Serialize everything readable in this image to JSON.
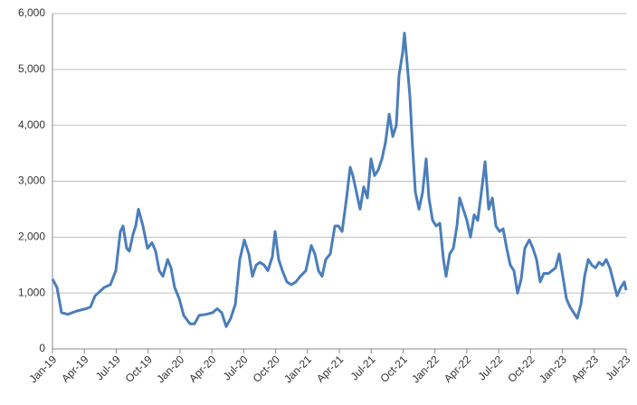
{
  "chart_data": {
    "type": "line",
    "x": [
      0,
      0.43,
      0.85,
      1.45,
      2.3,
      3.15,
      3.58,
      4.0,
      4.86,
      5.45,
      5.96,
      6.39,
      6.64,
      6.98,
      7.24,
      7.58,
      7.84,
      8.09,
      8.52,
      8.94,
      9.37,
      9.71,
      10.05,
      10.39,
      10.84,
      11.16,
      11.5,
      11.93,
      12.35,
      12.95,
      13.37,
      13.8,
      14.48,
      15.08,
      15.5,
      15.93,
      16.35,
      16.78,
      17.21,
      17.63,
      18.06,
      18.48,
      18.82,
      19.17,
      19.51,
      19.93,
      20.27,
      20.7,
      20.95,
      21.29,
      21.64,
      22.06,
      22.49,
      22.91,
      23.34,
      23.85,
      24.36,
      24.7,
      25.04,
      25.38,
      25.72,
      26.15,
      26.58,
      26.92,
      27.26,
      27.68,
      28.02,
      28.28,
      28.62,
      28.96,
      29.3,
      29.64,
      29.98,
      30.32,
      30.66,
      31.01,
      31.35,
      31.69,
      32.03,
      32.37,
      32.62,
      32.96,
      33.13,
      33.39,
      33.65,
      33.9,
      34.16,
      34.5,
      34.84,
      35.18,
      35.43,
      35.78,
      36.12,
      36.46,
      36.8,
      37.05,
      37.39,
      37.73,
      38.07,
      38.33,
      38.67,
      39.01,
      39.35,
      39.69,
      40.03,
      40.37,
      40.72,
      41.06,
      41.4,
      41.74,
      42.08,
      42.42,
      42.76,
      43.1,
      43.44,
      43.78,
      44.12,
      44.46,
      44.89,
      45.23,
      45.57,
      45.91,
      46.25,
      46.68,
      47.02,
      47.36,
      47.7,
      48.04,
      48.38,
      48.72,
      49.06,
      49.4,
      49.74,
      50.09,
      50.43,
      50.77,
      51.11,
      51.45,
      51.79,
      52.13,
      52.47,
      52.81,
      53.15,
      53.49,
      53.83,
      54.0
    ],
    "series": [
      {
        "color": "#4a7ebb",
        "values": [
          1250,
          1100,
          650,
          620,
          680,
          720,
          750,
          950,
          1100,
          1150,
          1400,
          2100,
          2200,
          1800,
          1750,
          2050,
          2200,
          2500,
          2200,
          1800,
          1900,
          1750,
          1400,
          1300,
          1600,
          1450,
          1100,
          900,
          600,
          450,
          450,
          600,
          620,
          650,
          720,
          650,
          400,
          550,
          800,
          1600,
          1950,
          1700,
          1300,
          1500,
          1550,
          1500,
          1400,
          1650,
          2100,
          1600,
          1400,
          1200,
          1150,
          1200,
          1300,
          1400,
          1850,
          1700,
          1400,
          1300,
          1600,
          1700,
          2200,
          2200,
          2100,
          2700,
          3250,
          3100,
          2800,
          2500,
          2900,
          2700,
          3400,
          3100,
          3200,
          3400,
          3700,
          4200,
          3800,
          4000,
          4900,
          5300,
          5650,
          5100,
          4500,
          3600,
          2800,
          2500,
          2800,
          3400,
          2700,
          2300,
          2200,
          2250,
          1600,
          1300,
          1700,
          1800,
          2200,
          2700,
          2500,
          2300,
          2000,
          2400,
          2300,
          2800,
          3350,
          2500,
          2700,
          2200,
          2100,
          2150,
          1800,
          1500,
          1400,
          1000,
          1250,
          1800,
          1950,
          1800,
          1600,
          1200,
          1350,
          1350,
          1400,
          1450,
          1700,
          1300,
          900,
          750,
          650,
          550,
          800,
          1300,
          1600,
          1500,
          1450,
          1550,
          1500,
          1600,
          1450,
          1200,
          950,
          1100,
          1200,
          1050
        ]
      }
    ],
    "xlim": [
      0,
      54
    ],
    "xticks": [
      {
        "value": 0,
        "label": "Jan-19"
      },
      {
        "value": 3,
        "label": "Apr-19"
      },
      {
        "value": 6,
        "label": "Jul-19"
      },
      {
        "value": 9,
        "label": "Oct-19"
      },
      {
        "value": 12,
        "label": "Jan-20"
      },
      {
        "value": 15,
        "label": "Apr-20"
      },
      {
        "value": 18,
        "label": "Jul-20"
      },
      {
        "value": 21,
        "label": "Oct-20"
      },
      {
        "value": 24,
        "label": "Jan-21"
      },
      {
        "value": 27,
        "label": "Apr-21"
      },
      {
        "value": 30,
        "label": "Jul-21"
      },
      {
        "value": 33,
        "label": "Oct-21"
      },
      {
        "value": 36,
        "label": "Jan-22"
      },
      {
        "value": 39,
        "label": "Apr-22"
      },
      {
        "value": 42,
        "label": "Jul-22"
      },
      {
        "value": 45,
        "label": "Oct-22"
      },
      {
        "value": 48,
        "label": "Jan-23"
      },
      {
        "value": 51,
        "label": "Apr-23"
      },
      {
        "value": 54,
        "label": "Jul-23"
      }
    ],
    "ylim": [
      0,
      6000
    ],
    "yticks": [
      0,
      {
        "value": 1000,
        "label": "1,000"
      },
      {
        "value": 2000,
        "label": "2,000"
      },
      {
        "value": 3000,
        "label": "3,000"
      },
      {
        "value": 4000,
        "label": "4,000"
      },
      {
        "value": 5000,
        "label": "5,000"
      },
      {
        "value": 6000,
        "label": "6,000"
      }
    ],
    "grid": true
  }
}
